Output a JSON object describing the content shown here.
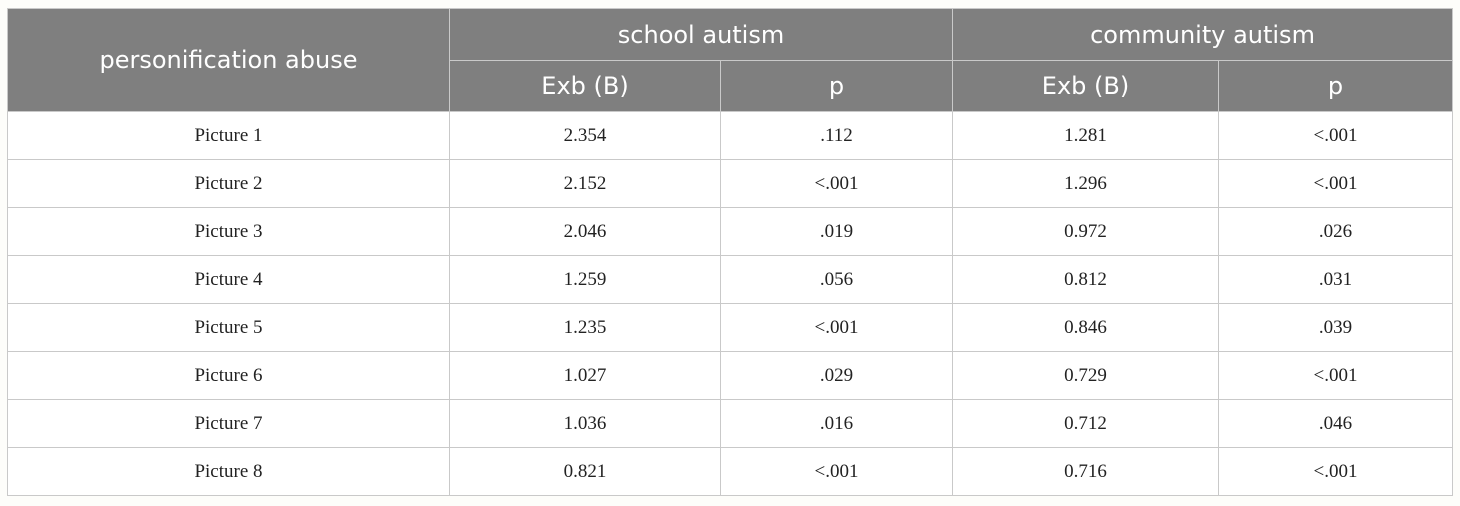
{
  "table": {
    "row_header": "personification abuse",
    "groups": [
      "school autism",
      "community autism"
    ],
    "subheaders": [
      "Exb (B)",
      "p",
      "Exb (B)",
      "p"
    ],
    "rows": [
      {
        "label": "Picture 1",
        "cells": [
          "2.354",
          ".112",
          "1.281",
          "<.001"
        ]
      },
      {
        "label": "Picture 2",
        "cells": [
          "2.152",
          "<.001",
          "1.296",
          "<.001"
        ]
      },
      {
        "label": "Picture 3",
        "cells": [
          "2.046",
          ".019",
          "0.972",
          ".026"
        ]
      },
      {
        "label": "Picture 4",
        "cells": [
          "1.259",
          ".056",
          "0.812",
          ".031"
        ]
      },
      {
        "label": "Picture 5",
        "cells": [
          "1.235",
          "<.001",
          "0.846",
          ".039"
        ]
      },
      {
        "label": "Picture 6",
        "cells": [
          "1.027",
          ".029",
          "0.729",
          "<.001"
        ]
      },
      {
        "label": "Picture 7",
        "cells": [
          "1.036",
          ".016",
          "0.712",
          ".046"
        ]
      },
      {
        "label": "Picture 8",
        "cells": [
          "0.821",
          "<.001",
          "0.716",
          "<.001"
        ]
      }
    ]
  }
}
